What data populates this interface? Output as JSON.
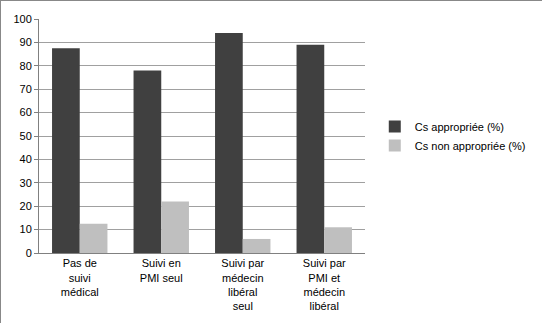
{
  "chart_data": {
    "type": "bar",
    "categories": [
      "Pas de suivi médical",
      "Suivi en PMI seul",
      "Suivi par médecin libéral seul",
      "Suivi par PMI et médecin libéral"
    ],
    "series": [
      {
        "name": "Cs appropriée (%)",
        "color": "#404040",
        "values": [
          87.5,
          78,
          94,
          89
        ]
      },
      {
        "name": "Cs non appropriée (%)",
        "color": "#bfbfbf",
        "values": [
          12.5,
          22,
          6,
          11
        ]
      }
    ],
    "ylim": [
      0,
      100
    ],
    "yticks": [
      0,
      10,
      20,
      30,
      40,
      50,
      60,
      70,
      80,
      90,
      100
    ],
    "grid": true,
    "legend": "right"
  }
}
